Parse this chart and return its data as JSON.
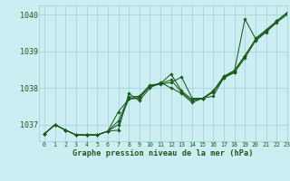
{
  "title": "Graphe pression niveau de la mer (hPa)",
  "background_color": "#cceef2",
  "grid_color": "#aad8de",
  "line_color": "#1a5c1a",
  "xlim": [
    -0.5,
    23
  ],
  "ylim": [
    1036.55,
    1040.25
  ],
  "yticks": [
    1037,
    1038,
    1039,
    1040
  ],
  "xticks": [
    0,
    1,
    2,
    3,
    4,
    5,
    6,
    7,
    8,
    9,
    10,
    11,
    12,
    13,
    14,
    15,
    16,
    17,
    18,
    19,
    20,
    21,
    22,
    23
  ],
  "series": [
    [
      1036.75,
      1037.0,
      1036.85,
      1036.72,
      1036.72,
      1036.72,
      1036.82,
      1036.85,
      1037.85,
      1037.65,
      1038.0,
      1038.15,
      1038.0,
      1037.85,
      1037.6,
      1037.72,
      1037.78,
      1038.28,
      1038.42,
      1038.82,
      1039.28,
      1039.52,
      1039.78,
      1040.0
    ],
    [
      1036.75,
      1037.0,
      1036.85,
      1036.72,
      1036.72,
      1036.72,
      1036.82,
      1037.35,
      1037.7,
      1037.75,
      1038.05,
      1038.1,
      1038.15,
      1038.3,
      1037.72,
      1037.72,
      1037.92,
      1038.32,
      1038.48,
      1038.88,
      1039.32,
      1039.55,
      1039.82,
      1040.05
    ],
    [
      1036.75,
      1037.0,
      1036.85,
      1036.72,
      1036.72,
      1036.72,
      1036.82,
      1037.0,
      1037.7,
      1037.72,
      1038.05,
      1038.12,
      1038.38,
      1037.92,
      1037.68,
      1037.72,
      1037.88,
      1038.28,
      1038.42,
      1038.88,
      1039.32,
      1039.55,
      1039.82,
      1040.05
    ],
    [
      1036.75,
      1037.0,
      1036.85,
      1036.72,
      1036.72,
      1036.72,
      1036.82,
      1037.1,
      1037.75,
      1037.78,
      1038.08,
      1038.12,
      1038.22,
      1037.88,
      1037.65,
      1037.72,
      1037.9,
      1038.3,
      1038.45,
      1039.88,
      1039.35,
      1039.58,
      1039.82,
      1040.05
    ]
  ]
}
